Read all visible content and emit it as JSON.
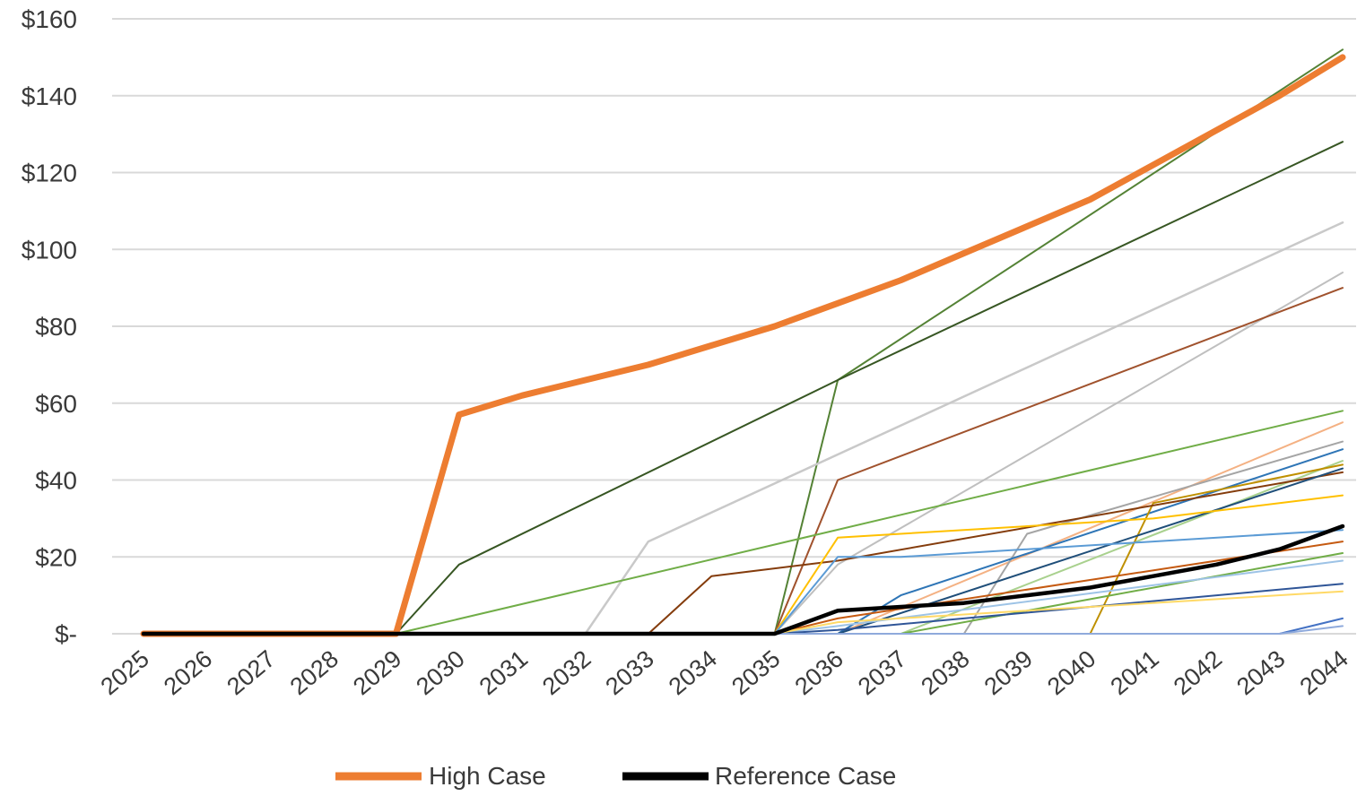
{
  "chart_data": {
    "type": "line",
    "title": "",
    "xlabel": "",
    "ylabel": "",
    "ylim": [
      0,
      160
    ],
    "grid": true,
    "legend_placement": "bottom",
    "y_ticks": [
      {
        "value": 0,
        "label": "$-"
      },
      {
        "value": 20,
        "label": "$20"
      },
      {
        "value": 40,
        "label": "$40"
      },
      {
        "value": 60,
        "label": "$60"
      },
      {
        "value": 80,
        "label": "$80"
      },
      {
        "value": 100,
        "label": "$100"
      },
      {
        "value": 120,
        "label": "$120"
      },
      {
        "value": 140,
        "label": "$140"
      },
      {
        "value": 160,
        "label": "$160"
      }
    ],
    "categories": [
      "2025",
      "2026",
      "2027",
      "2028",
      "2029",
      "2030",
      "2031",
      "2032",
      "2033",
      "2034",
      "2035",
      "2036",
      "2037",
      "2038",
      "2039",
      "2040",
      "2041",
      "2042",
      "2043",
      "2044"
    ],
    "colors": {
      "gridline": "#d9d9d9",
      "high_case": "#ed7d31",
      "reference_case": "#000000"
    },
    "series": [
      {
        "color": "#548235",
        "width": 2,
        "values": [
          0,
          0,
          0,
          0,
          0,
          null,
          null,
          null,
          null,
          null,
          0,
          66,
          null,
          null,
          null,
          null,
          null,
          null,
          null,
          152
        ]
      },
      {
        "color": "#375623",
        "width": 2,
        "values": [
          0,
          0,
          0,
          0,
          0,
          18,
          null,
          null,
          null,
          null,
          null,
          66,
          null,
          null,
          null,
          null,
          null,
          null,
          null,
          128
        ]
      },
      {
        "color": "#c9c9c9",
        "width": 2.5,
        "values": [
          0,
          0,
          0,
          0,
          0,
          0,
          0,
          0,
          24,
          null,
          null,
          null,
          null,
          null,
          null,
          null,
          null,
          null,
          null,
          107
        ]
      },
      {
        "color": "#bfbfbf",
        "width": 2,
        "values": [
          0,
          0,
          0,
          0,
          0,
          0,
          0,
          0,
          0,
          0,
          0,
          18,
          null,
          null,
          null,
          null,
          null,
          null,
          null,
          94
        ]
      },
      {
        "color": "#a0522d",
        "width": 2,
        "values": [
          0,
          0,
          0,
          0,
          0,
          0,
          0,
          0,
          0,
          0,
          0,
          40,
          null,
          null,
          null,
          null,
          null,
          null,
          null,
          90
        ]
      },
      {
        "color": "#70ad47",
        "width": 2,
        "values": [
          0,
          0,
          0,
          0,
          0,
          null,
          null,
          null,
          null,
          null,
          null,
          null,
          null,
          null,
          null,
          null,
          null,
          null,
          null,
          58
        ]
      },
      {
        "color": "#f4b183",
        "width": 2,
        "values": [
          0,
          0,
          0,
          0,
          0,
          0,
          0,
          0,
          0,
          0,
          0,
          0,
          null,
          null,
          null,
          null,
          null,
          null,
          null,
          55
        ]
      },
      {
        "color": "#a5a5a5",
        "width": 2,
        "values": [
          0,
          0,
          0,
          0,
          0,
          0,
          0,
          0,
          0,
          0,
          0,
          0,
          0,
          0,
          26,
          null,
          null,
          null,
          null,
          50
        ]
      },
      {
        "color": "#2e75b6",
        "width": 2,
        "values": [
          0,
          0,
          0,
          0,
          0,
          0,
          0,
          0,
          0,
          0,
          0,
          0,
          10,
          null,
          null,
          null,
          null,
          null,
          null,
          48
        ]
      },
      {
        "color": "#a9d18e",
        "width": 2,
        "values": [
          0,
          0,
          0,
          0,
          0,
          0,
          0,
          0,
          0,
          0,
          0,
          0,
          0,
          null,
          null,
          null,
          null,
          null,
          null,
          45
        ]
      },
      {
        "color": "#bf9000",
        "width": 2,
        "values": [
          0,
          0,
          0,
          0,
          0,
          0,
          0,
          0,
          0,
          0,
          0,
          0,
          0,
          0,
          0,
          0,
          34,
          null,
          null,
          44
        ]
      },
      {
        "color": "#843c0c",
        "width": 2,
        "values": [
          0,
          0,
          0,
          0,
          0,
          0,
          0,
          0,
          0,
          15,
          17,
          19,
          null,
          null,
          null,
          null,
          null,
          null,
          null,
          42
        ]
      },
      {
        "color": "#1f4e79",
        "width": 2,
        "values": [
          0,
          0,
          0,
          0,
          0,
          0,
          0,
          0,
          0,
          0,
          0,
          0,
          null,
          null,
          null,
          null,
          null,
          null,
          null,
          43
        ]
      },
      {
        "color": "#ffc000",
        "width": 2,
        "values": [
          0,
          0,
          0,
          0,
          0,
          0,
          0,
          0,
          0,
          0,
          0,
          25,
          26,
          27,
          28,
          29,
          30,
          null,
          null,
          36
        ]
      },
      {
        "color": "#5b9bd5",
        "width": 2,
        "values": [
          0,
          0,
          0,
          0,
          0,
          0,
          0,
          0,
          0,
          0,
          0,
          20,
          20,
          21,
          22,
          23,
          24,
          null,
          null,
          27
        ]
      },
      {
        "color": "#c55a11",
        "width": 2,
        "values": [
          0,
          0,
          0,
          0,
          0,
          0,
          0,
          0,
          0,
          0,
          0,
          4,
          null,
          null,
          null,
          null,
          null,
          null,
          null,
          24
        ]
      },
      {
        "color": "#70ad47",
        "width": 2,
        "values": [
          0,
          0,
          0,
          0,
          0,
          0,
          0,
          0,
          0,
          0,
          0,
          0,
          0,
          null,
          null,
          null,
          null,
          null,
          null,
          21
        ]
      },
      {
        "color": "#9dc3e6",
        "width": 2,
        "values": [
          0,
          0,
          0,
          0,
          0,
          0,
          0,
          0,
          0,
          0,
          0,
          2,
          null,
          null,
          null,
          null,
          null,
          null,
          null,
          19
        ]
      },
      {
        "color": "#2f5597",
        "width": 2,
        "values": [
          0,
          0,
          0,
          0,
          0,
          0,
          0,
          0,
          0,
          0,
          0,
          1,
          null,
          null,
          null,
          null,
          null,
          null,
          null,
          13
        ]
      },
      {
        "color": "#ffd966",
        "width": 2,
        "values": [
          0,
          0,
          0,
          0,
          0,
          0,
          0,
          0,
          0,
          0,
          0,
          3,
          null,
          null,
          null,
          null,
          null,
          null,
          null,
          11
        ]
      },
      {
        "color": "#4472c4",
        "width": 2,
        "values": [
          0,
          0,
          0,
          0,
          0,
          0,
          0,
          0,
          0,
          0,
          0,
          0,
          0,
          0,
          0,
          0,
          0,
          0,
          0,
          4
        ]
      },
      {
        "color": "#8faadc",
        "width": 2,
        "values": [
          0,
          0,
          0,
          0,
          0,
          0,
          0,
          0,
          0,
          0,
          0,
          0,
          0,
          0,
          0,
          0,
          0,
          0,
          0,
          2
        ]
      },
      {
        "name": "High Case",
        "color": "#ed7d31",
        "width": 7,
        "values": [
          0,
          0,
          0,
          0,
          0,
          57,
          62,
          66,
          70,
          75,
          80,
          86,
          92,
          99,
          106,
          113,
          122,
          131,
          140,
          150
        ]
      },
      {
        "name": "Reference Case",
        "color": "#000000",
        "width": 4.5,
        "values": [
          0,
          0,
          0,
          0,
          0,
          0,
          0,
          0,
          0,
          0,
          0,
          6,
          7,
          8,
          10,
          12,
          15,
          18,
          22,
          28
        ]
      }
    ],
    "legend": [
      {
        "label": "High Case",
        "color": "#ed7d31"
      },
      {
        "label": "Reference Case",
        "color": "#000000"
      }
    ]
  }
}
